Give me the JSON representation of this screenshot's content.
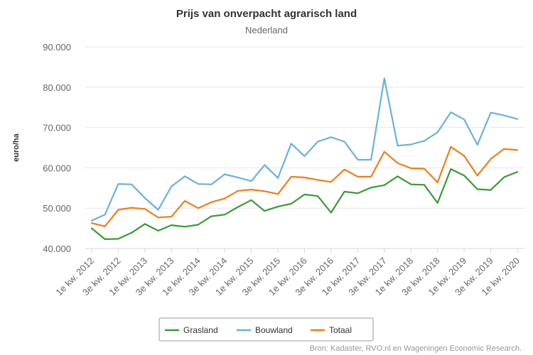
{
  "chart_data": {
    "type": "line",
    "title": "Prijs van onverpacht agrarisch land",
    "subtitle": "Nederland",
    "ylabel": "euro/ha",
    "xlabel": "",
    "ylim": [
      40000,
      90000
    ],
    "yticks": [
      40000,
      50000,
      60000,
      70000,
      80000,
      90000
    ],
    "ytick_labels": [
      "40.000",
      "50.000",
      "60.000",
      "70.000",
      "80.000",
      "90.000"
    ],
    "categories": [
      "1e kw. 2012",
      "2e kw. 2012",
      "3e kw. 2012",
      "4e kw. 2012",
      "1e kw. 2013",
      "2e kw. 2013",
      "3e kw. 2013",
      "4e kw. 2013",
      "1e kw. 2014",
      "2e kw. 2014",
      "3e kw. 2014",
      "4e kw. 2014",
      "1e kw. 2015",
      "2e kw. 2015",
      "3e kw. 2015",
      "4e kw. 2015",
      "1e kw. 2016",
      "2e kw. 2016",
      "3e kw. 2016",
      "4e kw. 2016",
      "1e kw. 2017",
      "2e kw. 2017",
      "3e kw. 2017",
      "4e kw. 2017",
      "1e kw. 2018",
      "2e kw. 2018",
      "3e kw. 2018",
      "4e kw. 2018",
      "1e kw. 2019",
      "2e kw. 2019",
      "3e kw. 2019",
      "4e kw. 2019",
      "1e kw. 2020"
    ],
    "visible_tick_labels": [
      "1e kw. 2012",
      "3e kw. 2012",
      "1e kw. 2013",
      "3e kw. 2013",
      "1e kw. 2014",
      "3e kw. 2014",
      "1e kw. 2015",
      "3e kw. 2015",
      "1e kw. 2016",
      "3e kw. 2016",
      "1e kw. 2017",
      "3e kw. 2017",
      "1e kw. 2018",
      "3e kw. 2018",
      "1e kw. 2019",
      "3e kw. 2019",
      "1e kw. 2020"
    ],
    "series": [
      {
        "name": "Grasland",
        "color": "#3a9a35",
        "values": [
          45000,
          42300,
          42400,
          43900,
          46100,
          44400,
          45800,
          45400,
          45900,
          48000,
          48400,
          50300,
          52000,
          49300,
          50400,
          51100,
          53400,
          53000,
          48900,
          54100,
          53700,
          55100,
          55700,
          57900,
          55900,
          55800,
          51300,
          59700,
          58100,
          54700,
          54500,
          57700,
          59000
        ]
      },
      {
        "name": "Bouwland",
        "color": "#6ab1dd",
        "values": [
          46900,
          48400,
          56000,
          55900,
          52500,
          49600,
          55400,
          57900,
          56000,
          55900,
          58400,
          57600,
          56700,
          60700,
          57500,
          66000,
          62900,
          66500,
          67600,
          66500,
          62000,
          62000,
          82200,
          65500,
          65800,
          66700,
          68800,
          73800,
          72000,
          65700,
          73700,
          73000,
          72100
        ]
      },
      {
        "name": "Totaal",
        "color": "#ef7d1a",
        "values": [
          46300,
          45500,
          49600,
          50100,
          49800,
          47700,
          47900,
          51800,
          50000,
          51500,
          52400,
          54300,
          54600,
          54200,
          53500,
          57800,
          57600,
          57000,
          56500,
          59600,
          57800,
          57800,
          64000,
          61200,
          59900,
          59800,
          56400,
          65200,
          63000,
          58100,
          62200,
          64700,
          64400
        ]
      }
    ],
    "legend_position": "bottom"
  },
  "credit": "Bron: Kadaster, RVO.nl en Wageningen Economic Research."
}
